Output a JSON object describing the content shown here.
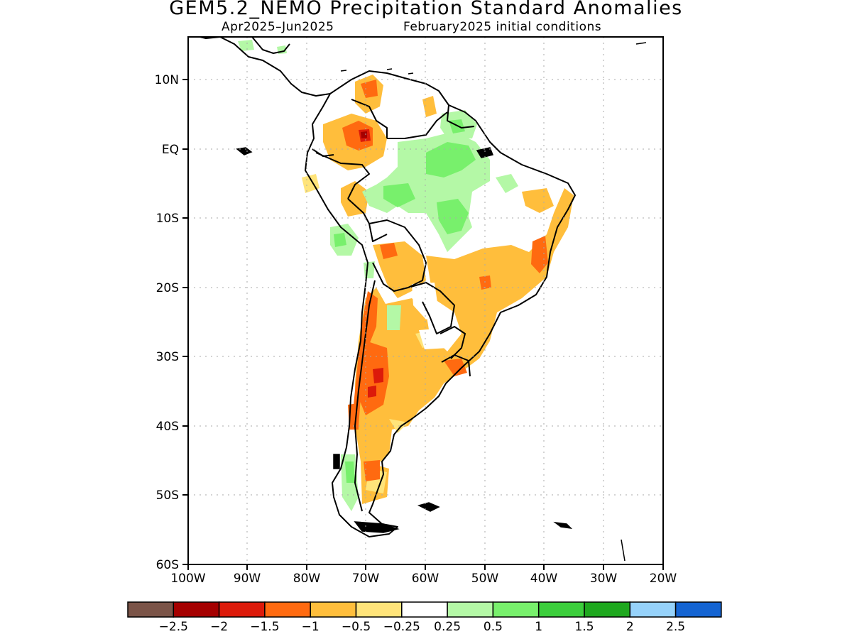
{
  "map": {
    "title": "GEM5.2_NEMO Precipitation Standard Anomalies",
    "period": "Apr2025–Jun2025",
    "initial_conditions": "February2025 initial conditions",
    "lat_labels": [
      "10N",
      "EQ",
      "10S",
      "20S",
      "30S",
      "40S",
      "50S",
      "60S"
    ],
    "lon_labels": [
      "100W",
      "90W",
      "80W",
      "70W",
      "60W",
      "50W",
      "40W",
      "30W",
      "20W"
    ],
    "extent": {
      "lon_min": -100,
      "lon_max": -20,
      "lat_min": -60,
      "lat_max": 16
    },
    "grid": "dotted",
    "region": "South America"
  },
  "colorbar": {
    "labels": [
      "−2.5",
      "−2",
      "−1.5",
      "−1",
      "−0.5",
      "−0.25",
      "0.25",
      "0.5",
      "1",
      "1.5",
      "2",
      "2.5"
    ],
    "colors": [
      "#7b5448",
      "#a50000",
      "#dc1a0a",
      "#ff6a10",
      "#ffbe3c",
      "#ffe47a",
      "#ffffff",
      "#b4f8a6",
      "#78f06c",
      "#3cce3c",
      "#1ea81e",
      "#96d2fa",
      "#1464d2"
    ]
  }
}
